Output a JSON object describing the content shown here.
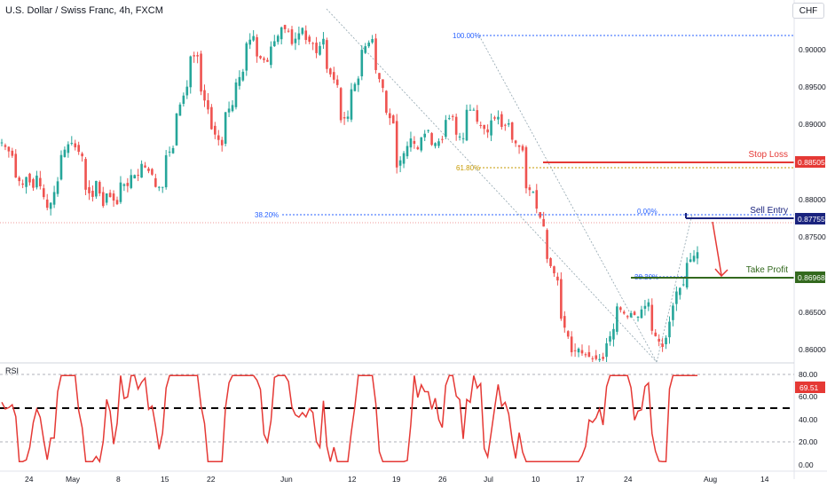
{
  "header": {
    "title": "U.S. Dollar / Swiss Franc, 4h, FXCM",
    "currency": "CHF"
  },
  "rsi": {
    "label": "RSI",
    "value": "69.51",
    "levels": [
      "80.00",
      "60.00",
      "40.00",
      "20.00",
      "0.00"
    ]
  },
  "chart_data": {
    "type": "candlestick",
    "title": "U.S. Dollar / Swiss Franc, 4h, FXCM",
    "y_ticks": [
      "0.90000",
      "0.89500",
      "0.89000",
      "0.88000",
      "0.87500",
      "0.86500",
      "0.86000"
    ],
    "x_ticks": [
      "24",
      "May",
      "8",
      "15",
      "22",
      "Jun",
      "12",
      "19",
      "26",
      "Jul",
      "10",
      "17",
      "24",
      "Aug",
      "14"
    ],
    "ylim": [
      0.8585,
      0.9195
    ],
    "levels": [
      {
        "name": "Stop Loss",
        "price": "0.88505",
        "color": "#e53935"
      },
      {
        "name": "Sell Entry",
        "price": "0.87755",
        "color": "#1a237e"
      },
      {
        "name": "Take Profit",
        "price": "0.86968",
        "color": "#33691e"
      }
    ],
    "fib_labels": [
      "100.00%",
      "61.80%",
      "38.20%",
      "0.00%",
      "38.20%"
    ],
    "close_path": [
      [
        0.896,
        0.8955
      ],
      [
        0.893,
        0.89
      ],
      [
        0.888,
        0.89
      ],
      [
        0.887,
        0.89
      ],
      [
        0.884,
        0.884
      ],
      [
        0.89,
        0.893
      ],
      [
        0.896,
        0.8955
      ],
      [
        0.893,
        0.888
      ],
      [
        0.886,
        0.89
      ],
      [
        0.883,
        0.887
      ],
      [
        0.885,
        0.889
      ],
      [
        0.888,
        0.89
      ],
      [
        0.89,
        0.892
      ],
      [
        0.89,
        0.888
      ],
      [
        0.888,
        0.893
      ],
      [
        0.895,
        0.9
      ],
      [
        0.905,
        0.91
      ],
      [
        0.91,
        0.905
      ],
      [
        0.9,
        0.898
      ],
      [
        0.895,
        0.9
      ],
      [
        0.902,
        0.905
      ],
      [
        0.908,
        0.912
      ],
      [
        0.914,
        0.91
      ],
      [
        0.909,
        0.911
      ],
      [
        0.914,
        0.915
      ],
      [
        0.914,
        0.912
      ],
      [
        0.915,
        0.913
      ],
      [
        0.912,
        0.91
      ],
      [
        0.914,
        0.908
      ],
      [
        0.905,
        0.899
      ],
      [
        0.9,
        0.904
      ],
      [
        0.907,
        0.911
      ],
      [
        0.913,
        0.909
      ],
      [
        0.904,
        0.901
      ],
      [
        0.898,
        0.891
      ],
      [
        0.895,
        0.897
      ],
      [
        0.894,
        0.896
      ],
      [
        0.898,
        0.895
      ],
      [
        0.896,
        0.899
      ],
      [
        0.9,
        0.897
      ],
      [
        0.896,
        0.901
      ],
      [
        0.901,
        0.899
      ],
      [
        0.897,
        0.899
      ],
      [
        0.9,
        0.898
      ],
      [
        0.899,
        0.896
      ],
      [
        0.894,
        0.888
      ],
      [
        0.887,
        0.885
      ],
      [
        0.88,
        0.876
      ],
      [
        0.872,
        0.867
      ],
      [
        0.862,
        0.86
      ],
      [
        0.861,
        0.86
      ],
      [
        0.859,
        0.859
      ],
      [
        0.859,
        0.861
      ],
      [
        0.865,
        0.868
      ],
      [
        0.866,
        0.867
      ],
      [
        0.866,
        0.867
      ],
      [
        0.869,
        0.864
      ],
      [
        0.861,
        0.86
      ],
      [
        0.869,
        0.87
      ],
      [
        0.872,
        0.875
      ],
      [
        0.877,
        0.876
      ]
    ]
  }
}
